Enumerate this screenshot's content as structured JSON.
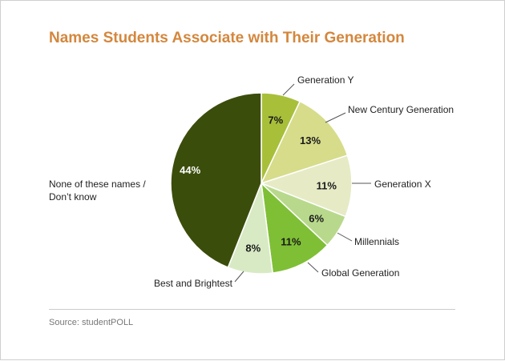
{
  "chart_data": {
    "type": "pie",
    "title": "Names Students Associate with Their Generation",
    "slices": [
      {
        "label": "Generation Y",
        "value": 7,
        "value_label": "7%",
        "color": "#a8bf3a"
      },
      {
        "label": "New Century Generation",
        "value": 13,
        "value_label": "13%",
        "color": "#d6dc8a"
      },
      {
        "label": "Generation X",
        "value": 11,
        "value_label": "11%",
        "color": "#e6ebc6"
      },
      {
        "label": "Millennials",
        "value": 6,
        "value_label": "6%",
        "color": "#b8d98c"
      },
      {
        "label": "Global Generation",
        "value": 11,
        "value_label": "11%",
        "color": "#7fbf35"
      },
      {
        "label": "Best and Brightest",
        "value": 8,
        "value_label": "8%",
        "color": "#d8eac4"
      },
      {
        "label": "None of these names / Don’t know",
        "label_lines": [
          "None of these names /",
          "Don’t know"
        ],
        "value": 44,
        "value_label": "44%",
        "color": "#3b4d0b"
      }
    ],
    "start_angle_deg": 0,
    "direction": "clockwise"
  },
  "source": "Source: studentPOLL"
}
